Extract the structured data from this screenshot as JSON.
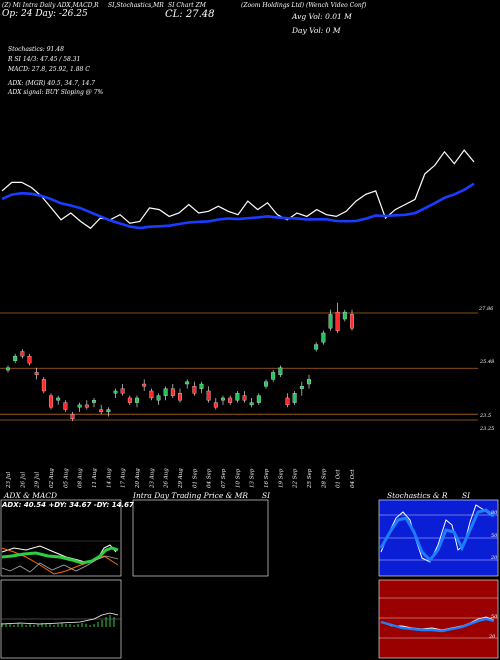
{
  "header": {
    "line1_left": "(Z) Mi Intra",
    "line1_rest": "Daily ADX,MACD,R",
    "line1_si": "SI,Stochastics,MR",
    "line1_mid": "SI Chart",
    "line1_ticker": "ZM",
    "line1_company": "(Zoom Holdings Ltd) (Wench Video Conf)",
    "op_day": "Op: 24  Day: -26.25",
    "close": "CL: 27.48",
    "avg_vol": "Avg Vol: 0.01 M",
    "day_vol": "Day Vol: 0   M",
    "stoch": "Stochastics: 91.48",
    "rsi": "R                    SI 14/3: 47.45 / 58.31",
    "macd": "MACD: 27.8,  25.92,  1.88  C",
    "adx": "ADX:                                   (MGR) 40.5,  34.7,  14.7",
    "adx_signal": "ADX  signal:                                      BUY Sloping @ 7%"
  },
  "price_levels": [
    {
      "value": "27.86",
      "label": "27.86"
    },
    {
      "value": "25.48",
      "label": "25.48"
    },
    {
      "value": "23.5",
      "label": "23.5"
    },
    {
      "value": "23.25",
      "label": "23.25"
    }
  ],
  "panels": {
    "adx_title": "ADX  & MACD",
    "adx_values": "ADX: 40.54  +DY: 34.67 -DY: 14.67",
    "intraday_title": "Intra  Day Trading Price  & MR",
    "intraday_si": "SI",
    "stoch_title": "Stochastics & R",
    "stoch_si": "SI",
    "stoch_ticks": [
      "80",
      "50",
      "20"
    ],
    "rsi_ticks": [
      "50",
      "20"
    ]
  },
  "chart_data": {
    "type": "candlestick",
    "dates": [
      "23 Jul",
      "26 Jul",
      "29 Jul",
      "02 Aug",
      "05 Aug",
      "08 Aug",
      "11 Aug",
      "14 Aug",
      "17 Aug",
      "20 Aug",
      "23 Aug",
      "26 Aug",
      "29 Aug",
      "01 Sep",
      "04 Sep",
      "07 Sep",
      "10 Sep",
      "13 Sep",
      "16 Sep",
      "19 Sep",
      "22 Sep",
      "25 Sep",
      "28 Sep",
      "01 Oct",
      "04 Oct"
    ],
    "candles": [
      [
        25.4,
        25.6,
        25.3,
        25.5
      ],
      [
        25.8,
        26.1,
        25.7,
        26.0
      ],
      [
        26.2,
        26.3,
        25.9,
        26.0
      ],
      [
        26.0,
        26.1,
        25.6,
        25.7
      ],
      [
        25.3,
        25.5,
        25.0,
        25.2
      ],
      [
        25.0,
        25.1,
        24.4,
        24.5
      ],
      [
        24.3,
        24.4,
        23.7,
        23.8
      ],
      [
        24.1,
        24.3,
        23.9,
        24.2
      ],
      [
        24.0,
        24.1,
        23.6,
        23.7
      ],
      [
        23.5,
        23.6,
        23.2,
        23.3
      ],
      [
        23.8,
        24.0,
        23.6,
        23.9
      ],
      [
        23.9,
        24.1,
        23.7,
        23.8
      ],
      [
        24.0,
        24.2,
        23.8,
        24.1
      ],
      [
        23.7,
        23.9,
        23.5,
        23.6
      ],
      [
        23.6,
        23.8,
        23.4,
        23.7
      ],
      [
        24.4,
        24.6,
        24.2,
        24.5
      ],
      [
        24.6,
        24.8,
        24.3,
        24.4
      ],
      [
        24.2,
        24.3,
        23.9,
        24.0
      ],
      [
        24.0,
        24.3,
        23.8,
        24.2
      ],
      [
        24.8,
        25.0,
        24.5,
        24.7
      ],
      [
        24.5,
        24.6,
        24.1,
        24.2
      ],
      [
        24.1,
        24.4,
        23.9,
        24.3
      ],
      [
        24.3,
        24.7,
        24.1,
        24.6
      ],
      [
        24.6,
        24.8,
        24.2,
        24.3
      ],
      [
        24.4,
        24.6,
        24.0,
        24.1
      ],
      [
        24.8,
        25.0,
        24.6,
        24.9
      ],
      [
        24.7,
        24.9,
        24.3,
        24.4
      ],
      [
        24.6,
        24.9,
        24.4,
        24.8
      ],
      [
        24.5,
        24.7,
        24.0,
        24.1
      ],
      [
        24.0,
        24.2,
        23.7,
        23.8
      ],
      [
        24.1,
        24.3,
        23.9,
        24.2
      ],
      [
        24.2,
        24.3,
        23.9,
        24.0
      ],
      [
        24.1,
        24.5,
        24.0,
        24.4
      ],
      [
        24.3,
        24.5,
        24.0,
        24.1
      ],
      [
        23.9,
        24.2,
        23.8,
        24.0
      ],
      [
        24.0,
        24.4,
        23.9,
        24.3
      ],
      [
        24.7,
        25.0,
        24.6,
        24.9
      ],
      [
        25.0,
        25.4,
        24.9,
        25.3
      ],
      [
        25.2,
        25.6,
        25.1,
        25.5
      ],
      [
        24.2,
        24.4,
        23.8,
        23.9
      ],
      [
        24.0,
        24.5,
        23.9,
        24.4
      ],
      [
        24.6,
        24.9,
        24.3,
        24.7
      ],
      [
        24.8,
        25.2,
        24.6,
        25.0
      ],
      [
        26.3,
        26.6,
        26.2,
        26.5
      ],
      [
        26.6,
        27.1,
        26.5,
        27.0
      ],
      [
        27.2,
        28.0,
        27.1,
        27.8
      ],
      [
        27.9,
        28.3,
        27.0,
        27.1
      ],
      [
        27.6,
        28.0,
        27.5,
        27.9
      ],
      [
        27.8,
        28.0,
        27.1,
        27.2
      ]
    ]
  }
}
